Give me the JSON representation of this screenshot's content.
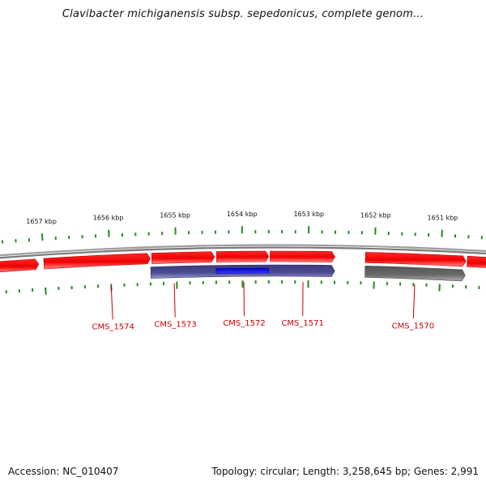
{
  "title": "Clavibacter michiganensis subsp. sepedonicus, complete genom...",
  "footer": {
    "accession": "Accession: NC_010407",
    "summary": "Topology: circular; Length: 3,258,645 bp; Genes: 2,991"
  },
  "colors": {
    "forward_gene": "#ff0000",
    "reverse_gene": "#4a4a8e",
    "selected_gene": "#0000ee",
    "rna_gene": "#666666",
    "backbone": "#8c8c8c",
    "tick": "#228b22",
    "label": "#cc0000"
  },
  "ticks": [
    {
      "kbp": 1657,
      "label": "1657 kbp"
    },
    {
      "kbp": 1656,
      "label": "1656 kbp"
    },
    {
      "kbp": 1655,
      "label": "1655 kbp"
    },
    {
      "kbp": 1654,
      "label": "1654 kbp"
    },
    {
      "kbp": 1653,
      "label": "1653 kbp"
    },
    {
      "kbp": 1652,
      "label": "1652 kbp"
    },
    {
      "kbp": 1651,
      "label": "1651 kbp"
    }
  ],
  "features": [
    {
      "strand": "+",
      "start_kbp": 1657.78,
      "end_kbp": 1657.08,
      "type": "forward_gene"
    },
    {
      "strand": "+",
      "start_kbp": 1657.0,
      "end_kbp": 1655.39,
      "type": "forward_gene"
    },
    {
      "strand": "+",
      "start_kbp": 1655.37,
      "end_kbp": 1654.42,
      "type": "forward_gene"
    },
    {
      "strand": "+",
      "start_kbp": 1654.39,
      "end_kbp": 1653.6,
      "type": "forward_gene"
    },
    {
      "strand": "+",
      "start_kbp": 1653.58,
      "end_kbp": 1652.6,
      "type": "forward_gene"
    },
    {
      "strand": "+",
      "start_kbp": 1652.14,
      "end_kbp": 1650.62,
      "type": "forward_gene"
    },
    {
      "strand": "+",
      "start_kbp": 1650.6,
      "end_kbp": 1649.8,
      "type": "forward_gene"
    },
    {
      "strand": "-",
      "start_kbp": 1655.39,
      "end_kbp": 1652.6,
      "type": "reverse_gene",
      "name": "CMS_1573"
    },
    {
      "strand": "-",
      "start_kbp": 1654.4,
      "end_kbp": 1653.6,
      "type": "selected_gene"
    },
    {
      "strand": "-",
      "start_kbp": 1652.14,
      "end_kbp": 1650.62,
      "type": "rna_gene"
    }
  ],
  "gene_labels": [
    {
      "name": "CMS_1574",
      "kbp": 1656.0
    },
    {
      "name": "CMS_1573",
      "kbp": 1655.04
    },
    {
      "name": "CMS_1572",
      "kbp": 1653.98
    },
    {
      "name": "CMS_1571",
      "kbp": 1653.08
    },
    {
      "name": "CMS_1570",
      "kbp": 1651.38
    }
  ]
}
